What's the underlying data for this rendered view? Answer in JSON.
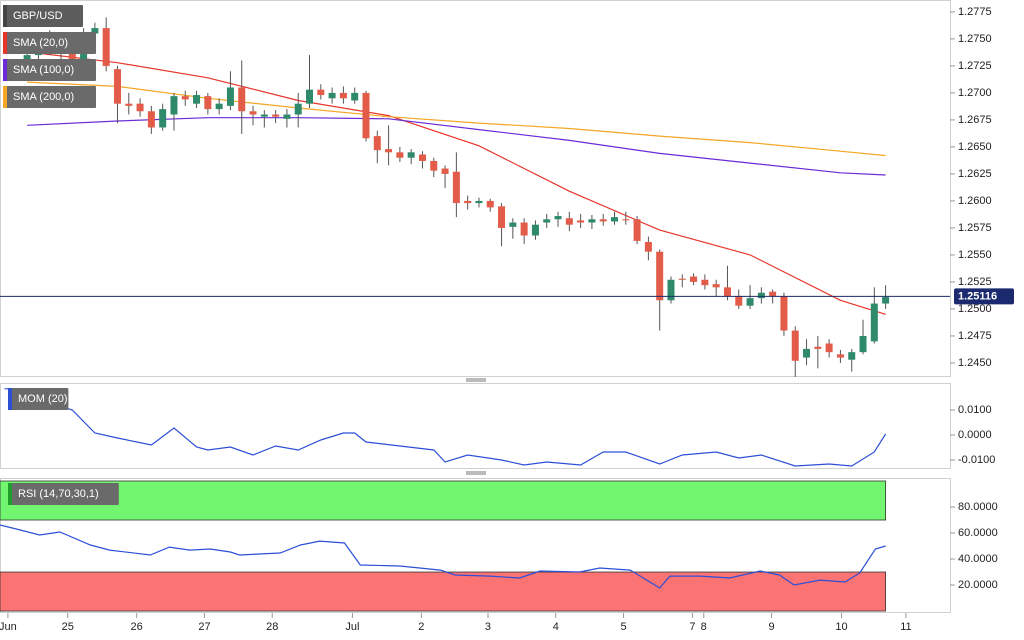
{
  "chart_data": [
    {
      "type": "candlestick",
      "title": "GBP/USD",
      "open": [
        1.273,
        1.2735,
        1.275,
        1.274,
        1.2745,
        1.273,
        1.2755,
        1.276,
        1.2722,
        1.269,
        1.269,
        1.2683,
        1.2668,
        1.268,
        1.2697,
        1.269,
        1.2697,
        1.2685,
        1.2688,
        1.2705,
        1.2683,
        1.2678,
        1.268,
        1.2676,
        1.268,
        1.269,
        1.2703,
        1.2695,
        1.27,
        1.2693,
        1.27,
        1.266,
        1.2648,
        1.2645,
        1.264,
        1.2643,
        1.2637,
        1.263,
        1.2627,
        1.26,
        1.2598,
        1.26,
        1.2595,
        1.2576,
        1.258,
        1.2568,
        1.258,
        1.2583,
        1.2584,
        1.2582,
        1.258,
        1.2583,
        1.2581,
        1.2583,
        1.2583,
        1.2562,
        1.2553,
        1.2508,
        1.2528,
        1.253,
        1.2527,
        1.2523,
        1.252,
        1.2512,
        1.2503,
        1.251,
        1.2516,
        1.2512,
        1.248,
        1.2455,
        1.2465,
        1.2468,
        1.2458,
        1.2453,
        1.246,
        1.247,
        1.2505
      ],
      "high": [
        1.2738,
        1.2755,
        1.2758,
        1.275,
        1.2752,
        1.276,
        1.2765,
        1.277,
        1.2725,
        1.27,
        1.2695,
        1.2688,
        1.269,
        1.27,
        1.2702,
        1.2702,
        1.27,
        1.2695,
        1.272,
        1.273,
        1.2688,
        1.2684,
        1.2684,
        1.2685,
        1.27,
        1.2735,
        1.2708,
        1.2705,
        1.2706,
        1.2705,
        1.2702,
        1.2665,
        1.267,
        1.265,
        1.2648,
        1.2646,
        1.264,
        1.2633,
        1.2645,
        1.2605,
        1.2603,
        1.2602,
        1.2598,
        1.2584,
        1.2584,
        1.2582,
        1.2588,
        1.259,
        1.259,
        1.2588,
        1.2587,
        1.2588,
        1.259,
        1.259,
        1.2586,
        1.2567,
        1.2555,
        1.253,
        1.2532,
        1.2533,
        1.2532,
        1.2527,
        1.254,
        1.2518,
        1.2522,
        1.252,
        1.2518,
        1.2515,
        1.2484,
        1.2472,
        1.2475,
        1.2472,
        1.2462,
        1.2463,
        1.249,
        1.252,
        1.2522
      ],
      "low": [
        1.2715,
        1.2728,
        1.2735,
        1.273,
        1.2725,
        1.2728,
        1.2745,
        1.272,
        1.2672,
        1.268,
        1.2678,
        1.2662,
        1.2665,
        1.2665,
        1.2688,
        1.2686,
        1.268,
        1.268,
        1.2684,
        1.2662,
        1.267,
        1.2668,
        1.2672,
        1.2668,
        1.2668,
        1.2686,
        1.2694,
        1.269,
        1.269,
        1.269,
        1.2655,
        1.2635,
        1.2633,
        1.2636,
        1.2634,
        1.263,
        1.2622,
        1.2612,
        1.2585,
        1.2592,
        1.2594,
        1.259,
        1.2558,
        1.2565,
        1.256,
        1.2564,
        1.2575,
        1.2576,
        1.2572,
        1.2575,
        1.2574,
        1.2577,
        1.2578,
        1.2578,
        1.256,
        1.2545,
        1.248,
        1.2505,
        1.252,
        1.2522,
        1.2518,
        1.2512,
        1.2508,
        1.25,
        1.25,
        1.2505,
        1.2505,
        1.2475,
        1.2437,
        1.2448,
        1.2445,
        1.2455,
        1.245,
        1.2442,
        1.2458,
        1.2468,
        1.25
      ],
      "close": [
        1.2735,
        1.275,
        1.274,
        1.2745,
        1.273,
        1.2755,
        1.276,
        1.2725,
        1.269,
        1.2688,
        1.2683,
        1.2668,
        1.2685,
        1.2697,
        1.2694,
        1.2698,
        1.2685,
        1.269,
        1.2705,
        1.2683,
        1.268,
        1.268,
        1.2678,
        1.268,
        1.269,
        1.2703,
        1.2698,
        1.27,
        1.2695,
        1.27,
        1.2658,
        1.2647,
        1.2645,
        1.264,
        1.2645,
        1.2637,
        1.2628,
        1.2625,
        1.2598,
        1.2598,
        1.26,
        1.2594,
        1.2575,
        1.258,
        1.2568,
        1.2578,
        1.2583,
        1.2586,
        1.2578,
        1.258,
        1.2583,
        1.2581,
        1.2585,
        1.2582,
        1.2563,
        1.2553,
        1.2508,
        1.2527,
        1.2527,
        1.2525,
        1.2522,
        1.252,
        1.2512,
        1.2503,
        1.251,
        1.2515,
        1.2512,
        1.248,
        1.2452,
        1.2463,
        1.2463,
        1.246,
        1.2455,
        1.246,
        1.2475,
        1.2505,
        1.2511
      ],
      "up_color": "#2f8a6c",
      "down_color": "#e25c49",
      "series": [
        {
          "name": "SMA (20,0)",
          "color": "#e8352a",
          "x": [
            0,
            8,
            16,
            24,
            32,
            40,
            48,
            56,
            64,
            72,
            76
          ],
          "values": [
            1.2738,
            1.2728,
            1.2714,
            1.2693,
            1.2679,
            1.2651,
            1.2609,
            1.2573,
            1.255,
            1.2508,
            1.2495
          ]
        },
        {
          "name": "SMA (100,0)",
          "color": "#6a2bd6",
          "x": [
            0,
            8,
            16,
            24,
            32,
            40,
            48,
            56,
            64,
            72,
            76
          ],
          "values": [
            1.267,
            1.2674,
            1.2677,
            1.2677,
            1.2676,
            1.2666,
            1.2656,
            1.2644,
            1.2635,
            1.2626,
            1.2624
          ]
        },
        {
          "name": "SMA (200,0)",
          "color": "#f5a623",
          "x": [
            0,
            8,
            16,
            24,
            32,
            40,
            48,
            56,
            64,
            72,
            76
          ],
          "values": [
            1.271,
            1.2706,
            1.2695,
            1.2686,
            1.2678,
            1.2672,
            1.2667,
            1.266,
            1.2654,
            1.2646,
            1.2642
          ]
        }
      ],
      "last_price": 1.25116,
      "last_price_color": "#1b2a6e",
      "xlim": [
        -2.4,
        81.7
      ],
      "ylim": [
        1.2437,
        1.2786
      ],
      "yticks": [
        1.2775,
        {
          "value": 1.275,
          "label": "1.2750"
        },
        1.2725,
        {
          "value": 1.27,
          "label": "1.2700"
        },
        1.2675,
        {
          "value": 1.265,
          "label": "1.2650"
        },
        1.2625,
        {
          "value": 1.26,
          "label": "1.2600"
        },
        1.2575,
        {
          "value": 1.255,
          "label": "1.2550"
        },
        1.2525,
        {
          "value": 1.25,
          "label": "1.2500"
        },
        1.2475,
        {
          "value": 1.245,
          "label": "1.2450"
        }
      ],
      "xticks": [
        {
          "value": -1.7,
          "label": "Jun"
        },
        {
          "value": 3.6,
          "label": "25"
        },
        {
          "value": 9.7,
          "label": "26"
        },
        {
          "value": 15.7,
          "label": "27"
        },
        {
          "value": 21.7,
          "label": "28"
        },
        {
          "value": 28.8,
          "label": "Jul"
        },
        {
          "value": 34.9,
          "label": "2"
        },
        {
          "value": 40.8,
          "label": "3"
        },
        {
          "value": 46.8,
          "label": "4"
        },
        {
          "value": 52.8,
          "label": "5"
        },
        {
          "value": 58.9,
          "label": "7"
        },
        {
          "value": 59.9,
          "label": "8"
        },
        {
          "value": 65.9,
          "label": "9"
        },
        {
          "value": 72.1,
          "label": "10"
        },
        {
          "value": 77.8,
          "label": "11"
        }
      ]
    },
    {
      "type": "line",
      "title": "MOM (20)",
      "title_color": "#2c4fd6",
      "series": [
        {
          "color": "#2c4fd6",
          "x": [
            -2,
            0,
            1,
            4,
            6,
            8,
            11,
            13,
            15,
            16,
            18,
            20,
            22,
            24,
            26,
            28,
            29,
            30,
            33,
            36,
            37,
            39,
            42,
            44,
            46,
            49,
            51,
            53,
            56,
            58,
            61,
            63,
            65,
            68,
            71,
            73,
            75,
            76
          ],
          "values": [
            0.0185,
            0.0185,
            0.0145,
            0.01,
            0.0008,
            -0.0012,
            -0.004,
            0.0028,
            -0.0048,
            -0.006,
            -0.0048,
            -0.008,
            -0.0044,
            -0.006,
            -0.002,
            0.0008,
            0.0008,
            -0.0028,
            -0.0044,
            -0.006,
            -0.0108,
            -0.008,
            -0.01,
            -0.012,
            -0.0108,
            -0.012,
            -0.0068,
            -0.0068,
            -0.0116,
            -0.008,
            -0.0068,
            -0.0092,
            -0.008,
            -0.0124,
            -0.0116,
            -0.0124,
            -0.0068,
            0.0004
          ]
        }
      ],
      "ylim": [
        -0.0132,
        0.0208
      ],
      "yticks": [
        {
          "value": 0.01,
          "label": "0.0100"
        },
        {
          "value": 0,
          "label": "0.0000"
        },
        {
          "value": -0.01,
          "label": "-0.0100"
        }
      ]
    },
    {
      "type": "line",
      "title": "RSI (14,70,30,1)",
      "title_color": "#1f9e2c",
      "bands": [
        {
          "from": 70,
          "to": 100,
          "color": "#72f56f"
        },
        {
          "from": 0,
          "to": 30,
          "color": "#fb7373"
        }
      ],
      "series": [
        {
          "color": "#2c4fd6",
          "x": [
            -2.4,
            -0.6,
            1.1,
            2.9,
            5.6,
            7.3,
            10.9,
            12.6,
            14.4,
            16.2,
            18,
            18.8,
            22.4,
            24.2,
            25.9,
            28.1,
            29.5,
            33,
            36.6,
            37.9,
            41,
            43.6,
            45.4,
            48.9,
            50.7,
            53.4,
            56,
            56.9,
            59.6,
            62.2,
            64.9,
            66.6,
            67.9,
            70.2,
            72.4,
            73.7,
            75.1,
            76
          ],
          "values": [
            66.2,
            62.3,
            58.5,
            60.8,
            50.8,
            46.9,
            43.1,
            49.2,
            46.9,
            47.7,
            45.4,
            43.1,
            44.6,
            50.8,
            53.8,
            52.3,
            35.4,
            34.6,
            31.5,
            27.7,
            26.9,
            25.4,
            30.8,
            30.0,
            33.1,
            31.5,
            17.7,
            26.9,
            26.9,
            25.4,
            30.8,
            27.7,
            20.0,
            23.8,
            22.3,
            29.2,
            47.7,
            50.0
          ]
        }
      ],
      "ylim": [
        -1.5,
        102.3
      ],
      "yticks": [
        {
          "value": 80,
          "label": "80.0000"
        },
        {
          "value": 60,
          "label": "60.0000"
        },
        {
          "value": 40,
          "label": "40.0000"
        },
        {
          "value": 20,
          "label": "20.0000"
        }
      ]
    }
  ]
}
